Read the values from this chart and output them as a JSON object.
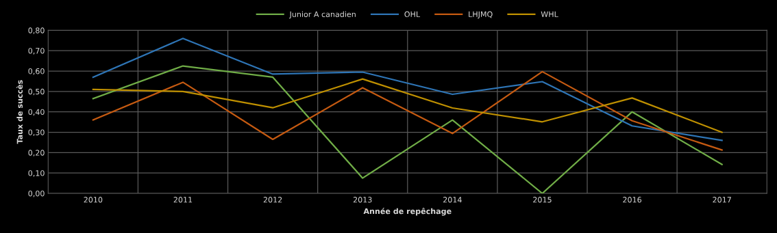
{
  "chart_data": {
    "type": "line",
    "xlabel": "Année de repêchage",
    "ylabel": "Taux de succès",
    "categories": [
      "2010",
      "2011",
      "2012",
      "2013",
      "2014",
      "2015",
      "2016",
      "2017"
    ],
    "series": [
      {
        "name": "Junior A canadien",
        "color": "#70ad47",
        "values": [
          0.465,
          0.625,
          0.57,
          0.075,
          0.36,
          0.0,
          0.4,
          0.142
        ]
      },
      {
        "name": "OHL",
        "color": "#2e75b6",
        "values": [
          0.57,
          0.76,
          0.585,
          0.595,
          0.486,
          0.548,
          0.331,
          0.26
        ]
      },
      {
        "name": "LHJMQ",
        "color": "#c55a11",
        "values": [
          0.36,
          0.545,
          0.265,
          0.518,
          0.294,
          0.597,
          0.356,
          0.213
        ]
      },
      {
        "name": "WHL",
        "color": "#bf9000",
        "values": [
          0.51,
          0.5,
          0.42,
          0.561,
          0.419,
          0.351,
          0.468,
          0.3
        ]
      }
    ],
    "ylim": [
      0,
      0.8
    ],
    "yticks": [
      {
        "value": 0,
        "label": "0,00"
      },
      {
        "value": 0.1,
        "label": "0,10"
      },
      {
        "value": 0.2,
        "label": "0,20"
      },
      {
        "value": 0.3,
        "label": "0,30"
      },
      {
        "value": 0.4,
        "label": "0,40"
      },
      {
        "value": 0.5,
        "label": "0,50"
      },
      {
        "value": 0.6,
        "label": "0,60"
      },
      {
        "value": 0.7,
        "label": "0,70"
      },
      {
        "value": 0.8,
        "label": "0,80"
      }
    ],
    "grid": true,
    "legend": "top",
    "marker": "none",
    "line_style": "solid"
  }
}
